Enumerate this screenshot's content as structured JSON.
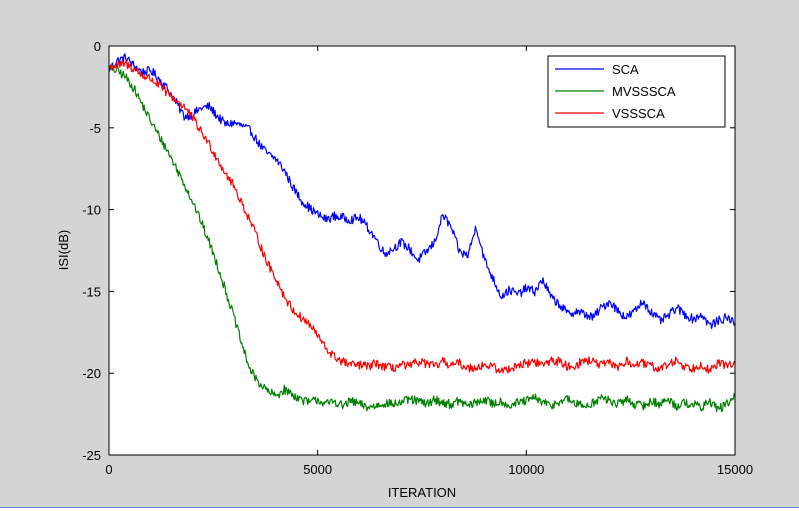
{
  "colors": {
    "background": "#d4d4d4",
    "axes_bg": "#ffffff"
  },
  "chart_data": {
    "type": "line",
    "title": "",
    "xlabel": "ITERATION",
    "ylabel": "ISI(dB)",
    "xlim": [
      0,
      15000
    ],
    "ylim": [
      -25,
      0
    ],
    "xticks": [
      0,
      5000,
      10000,
      15000
    ],
    "yticks": [
      0,
      -5,
      -10,
      -15,
      -20,
      -25
    ],
    "grid": false,
    "legend": "top-right",
    "x": [
      0,
      200,
      400,
      600,
      800,
      1000,
      1200,
      1400,
      1600,
      1800,
      2000,
      2200,
      2400,
      2600,
      2800,
      3000,
      3200,
      3400,
      3600,
      3800,
      4000,
      4200,
      4400,
      4600,
      4800,
      5000,
      5200,
      5400,
      5600,
      5800,
      6000,
      6200,
      6400,
      6600,
      6800,
      7000,
      7200,
      7400,
      7600,
      7800,
      8000,
      8200,
      8400,
      8600,
      8800,
      9000,
      9200,
      9400,
      9600,
      9800,
      10000,
      10200,
      10400,
      10600,
      10800,
      11000,
      11200,
      11400,
      11600,
      11800,
      12000,
      12200,
      12400,
      12600,
      12800,
      13000,
      13200,
      13400,
      13600,
      13800,
      14000,
      14200,
      14400,
      14600,
      14800,
      15000
    ],
    "series": [
      {
        "name": "SCA",
        "color": "#0000ff",
        "values": [
          -1.4,
          -0.9,
          -0.7,
          -1.2,
          -1.6,
          -1.5,
          -2.0,
          -2.6,
          -3.4,
          -4.3,
          -4.2,
          -3.8,
          -3.7,
          -4.3,
          -4.8,
          -4.7,
          -4.9,
          -5.2,
          -6.0,
          -6.6,
          -6.9,
          -7.6,
          -8.6,
          -9.4,
          -9.9,
          -10.3,
          -10.6,
          -10.4,
          -10.5,
          -10.6,
          -10.5,
          -11.1,
          -11.8,
          -12.7,
          -12.4,
          -12.0,
          -12.4,
          -13.1,
          -12.6,
          -12.0,
          -10.3,
          -11.1,
          -12.6,
          -12.8,
          -11.0,
          -13.1,
          -14.2,
          -15.3,
          -14.9,
          -15.2,
          -14.8,
          -15.0,
          -14.3,
          -15.4,
          -15.8,
          -16.4,
          -16.2,
          -16.4,
          -16.6,
          -16.0,
          -15.6,
          -16.2,
          -16.6,
          -16.2,
          -15.6,
          -16.3,
          -16.8,
          -16.5,
          -16.0,
          -16.4,
          -16.7,
          -16.4,
          -17.1,
          -16.8,
          -16.6,
          -16.9
        ]
      },
      {
        "name": "MVSSSCA",
        "color": "#008000",
        "values": [
          -1.4,
          -1.5,
          -1.9,
          -2.6,
          -3.6,
          -4.6,
          -5.5,
          -6.4,
          -7.4,
          -8.4,
          -9.5,
          -10.7,
          -12.0,
          -13.4,
          -15.0,
          -16.6,
          -18.4,
          -19.9,
          -20.6,
          -21.1,
          -21.4,
          -21.0,
          -21.3,
          -21.6,
          -21.8,
          -21.6,
          -21.9,
          -21.7,
          -22.0,
          -21.7,
          -21.9,
          -22.1,
          -22.0,
          -21.8,
          -21.9,
          -21.8,
          -21.6,
          -21.7,
          -21.9,
          -21.6,
          -21.8,
          -21.9,
          -21.7,
          -22.0,
          -21.8,
          -21.6,
          -21.9,
          -21.7,
          -22.0,
          -21.8,
          -21.7,
          -21.5,
          -21.8,
          -22.0,
          -21.7,
          -21.6,
          -21.9,
          -22.0,
          -21.8,
          -21.5,
          -21.7,
          -21.9,
          -21.6,
          -21.9,
          -22.0,
          -21.7,
          -21.9,
          -21.6,
          -22.0,
          -21.8,
          -21.9,
          -22.1,
          -21.7,
          -22.2,
          -21.9,
          -21.4
        ]
      },
      {
        "name": "VSSSCA",
        "color": "#ff0000",
        "values": [
          -1.3,
          -1.2,
          -1.1,
          -1.4,
          -1.8,
          -2.0,
          -2.4,
          -2.9,
          -3.3,
          -3.7,
          -4.4,
          -5.2,
          -6.0,
          -6.9,
          -7.8,
          -8.6,
          -9.7,
          -10.8,
          -12.0,
          -13.3,
          -14.2,
          -15.3,
          -16.1,
          -16.6,
          -17.0,
          -17.7,
          -18.5,
          -19.0,
          -19.3,
          -19.5,
          -19.5,
          -19.6,
          -19.4,
          -19.6,
          -19.7,
          -19.5,
          -19.6,
          -19.3,
          -19.4,
          -19.6,
          -19.3,
          -19.5,
          -19.4,
          -19.7,
          -19.6,
          -19.5,
          -19.6,
          -19.9,
          -19.7,
          -19.5,
          -19.4,
          -19.3,
          -19.5,
          -19.2,
          -19.3,
          -19.6,
          -19.5,
          -19.2,
          -19.3,
          -19.5,
          -19.4,
          -19.6,
          -19.3,
          -19.5,
          -19.4,
          -19.6,
          -19.7,
          -19.5,
          -19.2,
          -19.6,
          -19.7,
          -19.4,
          -19.9,
          -19.4,
          -19.5,
          -19.3
        ]
      }
    ]
  }
}
